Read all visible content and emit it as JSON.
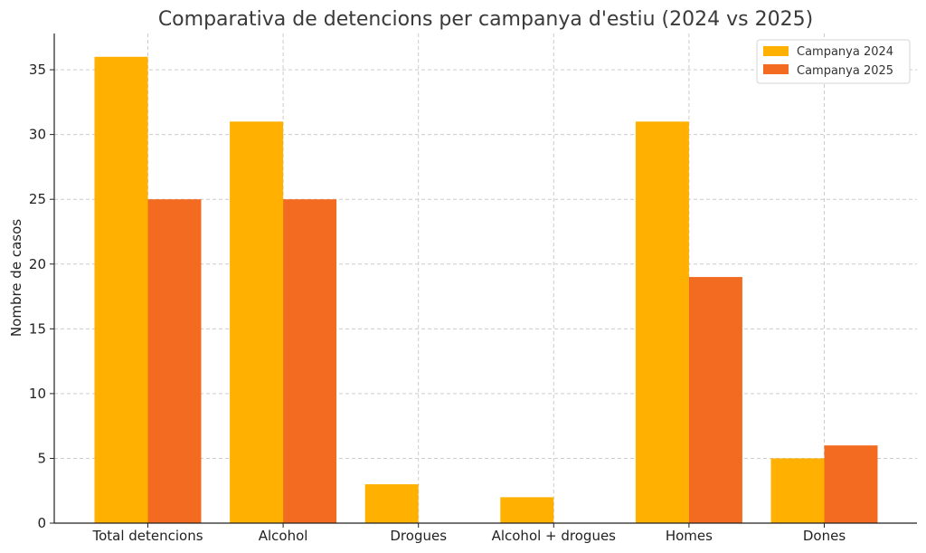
{
  "chart_data": {
    "type": "bar",
    "title": "Comparativa de detencions per campanya d'estiu (2024 vs 2025)",
    "xlabel": "",
    "ylabel": "Nombre de casos",
    "categories": [
      "Total detencions",
      "Alcohol",
      "Drogues",
      "Alcohol + drogues",
      "Homes",
      "Dones"
    ],
    "series": [
      {
        "name": "Campanya 2024",
        "values": [
          36,
          31,
          3,
          2,
          31,
          5
        ],
        "color": "#FFB000"
      },
      {
        "name": "Campanya 2025",
        "values": [
          25,
          25,
          0,
          0,
          19,
          6
        ],
        "color": "#F26B21"
      }
    ],
    "yticks": [
      0,
      5,
      10,
      15,
      20,
      25,
      30,
      35
    ],
    "ylim": [
      0,
      37.8
    ],
    "grid": true,
    "legend_position": "top-right"
  }
}
